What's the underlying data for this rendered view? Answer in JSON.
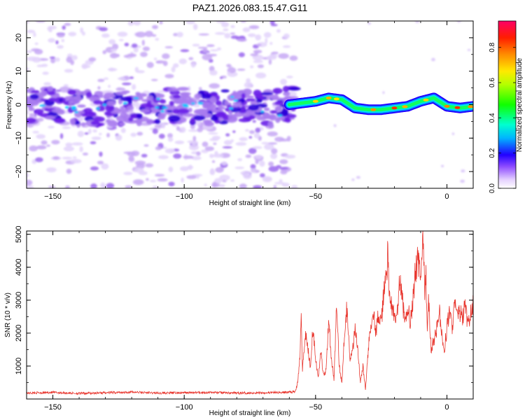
{
  "title": "PAZ1.2026.083.15.47.G11",
  "chart_data": [
    {
      "type": "heatmap",
      "name": "spectrogram",
      "xlabel": "Height of straight line (km)",
      "ylabel": "Frequency (Hz)",
      "xlim": [
        -160,
        10
      ],
      "ylim": [
        -25,
        25
      ],
      "xticks": [
        -150,
        -100,
        -50,
        0
      ],
      "yticks": [
        -20,
        -10,
        0,
        10,
        20
      ],
      "colorbar": {
        "label": "Normalized spectral amplitude",
        "range": [
          0,
          0.95
        ],
        "ticks": [
          0.0,
          0.2,
          0.4,
          0.6,
          0.8
        ],
        "tick_labels": [
          "0.0",
          "0.2",
          "0.4",
          "0.6",
          "0.8"
        ]
      },
      "ridge": {
        "description_points_x": [
          -160,
          -150,
          -140,
          -130,
          -120,
          -110,
          -100,
          -90,
          -80,
          -70,
          -60,
          -55,
          -50,
          -45,
          -40,
          -35,
          -30,
          -25,
          -20,
          -15,
          -10,
          -5,
          0,
          5,
          10
        ],
        "description_points_f": [
          -0.5,
          0,
          -1,
          -1.5,
          -1,
          -0.5,
          0,
          -1,
          -0.5,
          -1.5,
          0,
          0.5,
          1,
          2,
          1.5,
          -1,
          -1.5,
          -1.5,
          -1,
          -0.5,
          1,
          2,
          -0.5,
          -1,
          -0.5
        ]
      }
    },
    {
      "type": "line",
      "name": "snr",
      "xlabel": "Height of straight line (km)",
      "ylabel": "SNR (10 * v/v)",
      "xlim": [
        -160,
        10
      ],
      "ylim": [
        0,
        5100
      ],
      "xticks": [
        -150,
        -100,
        -50,
        0
      ],
      "yticks": [
        1000,
        2000,
        3000,
        4000,
        5000
      ],
      "color": "#e8362e",
      "series": [
        {
          "name": "SNR",
          "x": [
            -160,
            -150,
            -140,
            -130,
            -120,
            -110,
            -100,
            -90,
            -80,
            -70,
            -62,
            -58,
            -57,
            -56,
            -55.5,
            -55,
            -54,
            -53,
            -52,
            -51,
            -50,
            -49,
            -48,
            -47,
            -46,
            -45,
            -44,
            -43,
            -42,
            -41,
            -40,
            -39,
            -38,
            -37,
            -36,
            -35,
            -34,
            -33,
            -32,
            -31,
            -30,
            -29,
            -28,
            -27,
            -26,
            -25,
            -24,
            -23,
            -22.5,
            -22,
            -21,
            -20,
            -19,
            -18,
            -17,
            -16,
            -15,
            -14,
            -13,
            -12,
            -11,
            -10,
            -9,
            -8.5,
            -8,
            -7.5,
            -7,
            -6,
            -5,
            -4,
            -3,
            -2,
            -1,
            0,
            1,
            2,
            3,
            4,
            5,
            6,
            7,
            8,
            9,
            10
          ],
          "y": [
            180,
            200,
            170,
            190,
            210,
            180,
            190,
            200,
            180,
            190,
            200,
            220,
            400,
            1200,
            2800,
            900,
            2000,
            1600,
            1000,
            2200,
            1300,
            600,
            1500,
            700,
            900,
            2500,
            1200,
            600,
            2800,
            1000,
            500,
            2000,
            2900,
            1200,
            1400,
            2100,
            1700,
            500,
            1000,
            300,
            1400,
            2300,
            2700,
            2000,
            2600,
            2200,
            3300,
            3800,
            4500,
            3000,
            2900,
            2400,
            2500,
            3500,
            3100,
            2200,
            2800,
            2400,
            2900,
            3900,
            4200,
            3800,
            5000,
            3200,
            3900,
            1900,
            3000,
            1500,
            1800,
            2100,
            2700,
            2000,
            1400,
            2200,
            2600,
            2200,
            2900,
            2500,
            2600,
            2500,
            2800,
            2200,
            2600,
            2900
          ]
        }
      ]
    }
  ]
}
